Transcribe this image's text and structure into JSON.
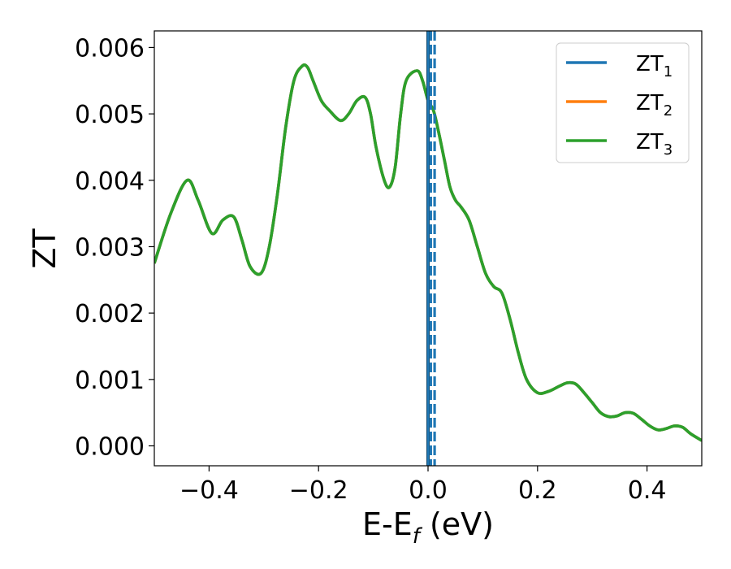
{
  "chart_data": {
    "type": "line",
    "xlabel_main": "E-E",
    "xlabel_sub": "f",
    "xlabel_tail": " (eV)",
    "ylabel": "ZT",
    "xlim": [
      -0.5,
      0.5
    ],
    "ylim": [
      -0.0003,
      0.00625
    ],
    "xticks": [
      -0.4,
      -0.2,
      0.0,
      0.2,
      0.4
    ],
    "xtick_labels": [
      "−0.4",
      "−0.2",
      "0.0",
      "0.2",
      "0.4"
    ],
    "yticks": [
      0.0,
      0.001,
      0.002,
      0.003,
      0.004,
      0.005,
      0.006
    ],
    "ytick_labels": [
      "0.000",
      "0.001",
      "0.002",
      "0.003",
      "0.004",
      "0.005",
      "0.006"
    ],
    "grid": false,
    "legend_position": "top-right",
    "colors": {
      "zt1": "#1f77b4",
      "zt2": "#ff7f0e",
      "zt3": "#2ca02c",
      "fermi_line": "#000000"
    },
    "series": [
      {
        "name": "ZT",
        "sub": "1",
        "color": "#1f77b4",
        "x": [
          -0.5,
          -0.47,
          -0.44,
          -0.42,
          -0.395,
          -0.375,
          -0.355,
          -0.34,
          -0.325,
          -0.305,
          -0.29,
          -0.275,
          -0.26,
          -0.245,
          -0.23,
          -0.22,
          -0.21,
          -0.195,
          -0.18,
          -0.16,
          -0.145,
          -0.13,
          -0.115,
          -0.105,
          -0.095,
          -0.08,
          -0.07,
          -0.06,
          -0.05,
          -0.04,
          -0.02,
          -0.01,
          0.0,
          0.01,
          0.02,
          0.03,
          0.04,
          0.05,
          0.06,
          0.075,
          0.09,
          0.105,
          0.12,
          0.135,
          0.15,
          0.165,
          0.18,
          0.2,
          0.22,
          0.24,
          0.255,
          0.27,
          0.285,
          0.3,
          0.315,
          0.33,
          0.345,
          0.36,
          0.375,
          0.39,
          0.405,
          0.42,
          0.435,
          0.45,
          0.465,
          0.48,
          0.5
        ],
        "y": [
          0.00275,
          0.0035,
          0.004,
          0.0037,
          0.0032,
          0.0034,
          0.00345,
          0.0031,
          0.0027,
          0.0026,
          0.003,
          0.0038,
          0.0048,
          0.0055,
          0.00572,
          0.0057,
          0.0055,
          0.0052,
          0.00505,
          0.0049,
          0.005,
          0.0052,
          0.00525,
          0.005,
          0.0045,
          0.004,
          0.0039,
          0.0042,
          0.005,
          0.0055,
          0.00565,
          0.0055,
          0.0052,
          0.00505,
          0.0047,
          0.0043,
          0.0039,
          0.0037,
          0.0036,
          0.0034,
          0.003,
          0.0026,
          0.0024,
          0.0023,
          0.0019,
          0.0014,
          0.001,
          0.0008,
          0.00082,
          0.0009,
          0.00095,
          0.00093,
          0.0008,
          0.00065,
          0.0005,
          0.00044,
          0.00045,
          0.0005,
          0.00049,
          0.0004,
          0.0003,
          0.00024,
          0.00026,
          0.0003,
          0.00028,
          0.00018,
          8e-05
        ]
      },
      {
        "name": "ZT",
        "sub": "2",
        "color": "#ff7f0e",
        "same_values_as": "ZT1"
      },
      {
        "name": "ZT",
        "sub": "3",
        "color": "#2ca02c",
        "same_values_as": "ZT1"
      }
    ],
    "vertical_lines": [
      {
        "x": 0.0,
        "color": "#000000",
        "style": "solid"
      },
      {
        "x": 0.0,
        "color": "#1f77b4",
        "style": "solid"
      },
      {
        "x": 0.005,
        "color": "#1f77b4",
        "style": "dashed"
      },
      {
        "x": 0.012,
        "color": "#1f77b4",
        "style": "dashed"
      }
    ]
  }
}
